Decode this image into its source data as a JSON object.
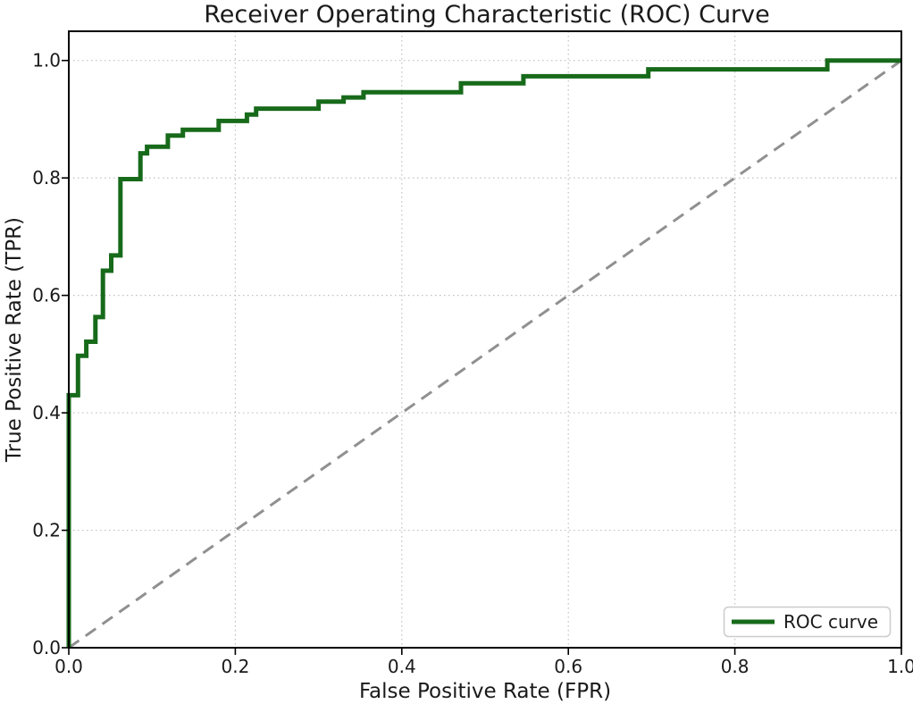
{
  "chart_data": {
    "type": "line",
    "title": "Receiver Operating Characteristic (ROC) Curve",
    "xlabel": "False Positive Rate (FPR)",
    "ylabel": "True Positive Rate (TPR)",
    "xlim": [
      0.0,
      1.0
    ],
    "ylim": [
      0.0,
      1.0
    ],
    "x_ticks": [
      0.0,
      0.2,
      0.4,
      0.6,
      0.8,
      1.0
    ],
    "y_ticks": [
      0.0,
      0.2,
      0.4,
      0.6,
      0.8,
      1.0
    ],
    "x_tick_labels": [
      "0.0",
      "0.2",
      "0.4",
      "0.6",
      "0.8",
      "1.0"
    ],
    "y_tick_labels": [
      "0.0",
      "0.2",
      "0.4",
      "0.6",
      "0.8",
      "1.0"
    ],
    "grid": true,
    "grid_style": "dotted",
    "legend": {
      "position": "lower right",
      "entries": [
        {
          "label": "ROC curve",
          "color": "#176a1a",
          "style": "solid"
        }
      ]
    },
    "series": [
      {
        "name": "ROC curve",
        "draw": "step-h-then-v",
        "color": "#176a1a",
        "linewidth": 5,
        "points": [
          [
            0.0,
            0.0
          ],
          [
            0.0,
            0.43
          ],
          [
            0.011,
            0.497
          ],
          [
            0.021,
            0.521
          ],
          [
            0.032,
            0.563
          ],
          [
            0.041,
            0.642
          ],
          [
            0.051,
            0.668
          ],
          [
            0.062,
            0.798
          ],
          [
            0.086,
            0.842
          ],
          [
            0.094,
            0.853
          ],
          [
            0.119,
            0.872
          ],
          [
            0.137,
            0.882
          ],
          [
            0.18,
            0.897
          ],
          [
            0.214,
            0.908
          ],
          [
            0.225,
            0.918
          ],
          [
            0.3,
            0.93
          ],
          [
            0.33,
            0.937
          ],
          [
            0.354,
            0.946
          ],
          [
            0.471,
            0.961
          ],
          [
            0.546,
            0.973
          ],
          [
            0.696,
            0.985
          ],
          [
            0.911,
            1.0
          ],
          [
            1.0,
            1.0
          ]
        ]
      },
      {
        "name": "chance-diagonal",
        "draw": "straight",
        "color": "#909090",
        "linewidth": 3,
        "dash": "14 9",
        "points": [
          [
            0.0,
            0.0
          ],
          [
            1.0,
            1.0
          ]
        ]
      }
    ],
    "colors": {
      "curve_green": "#176a1a",
      "diagonal_gray": "#909090",
      "grid_gray": "#c0c0c0",
      "spine_black": "#000000",
      "text_dark": "#1a1a1a",
      "legend_border": "#cccccc",
      "background": "#ffffff"
    }
  }
}
